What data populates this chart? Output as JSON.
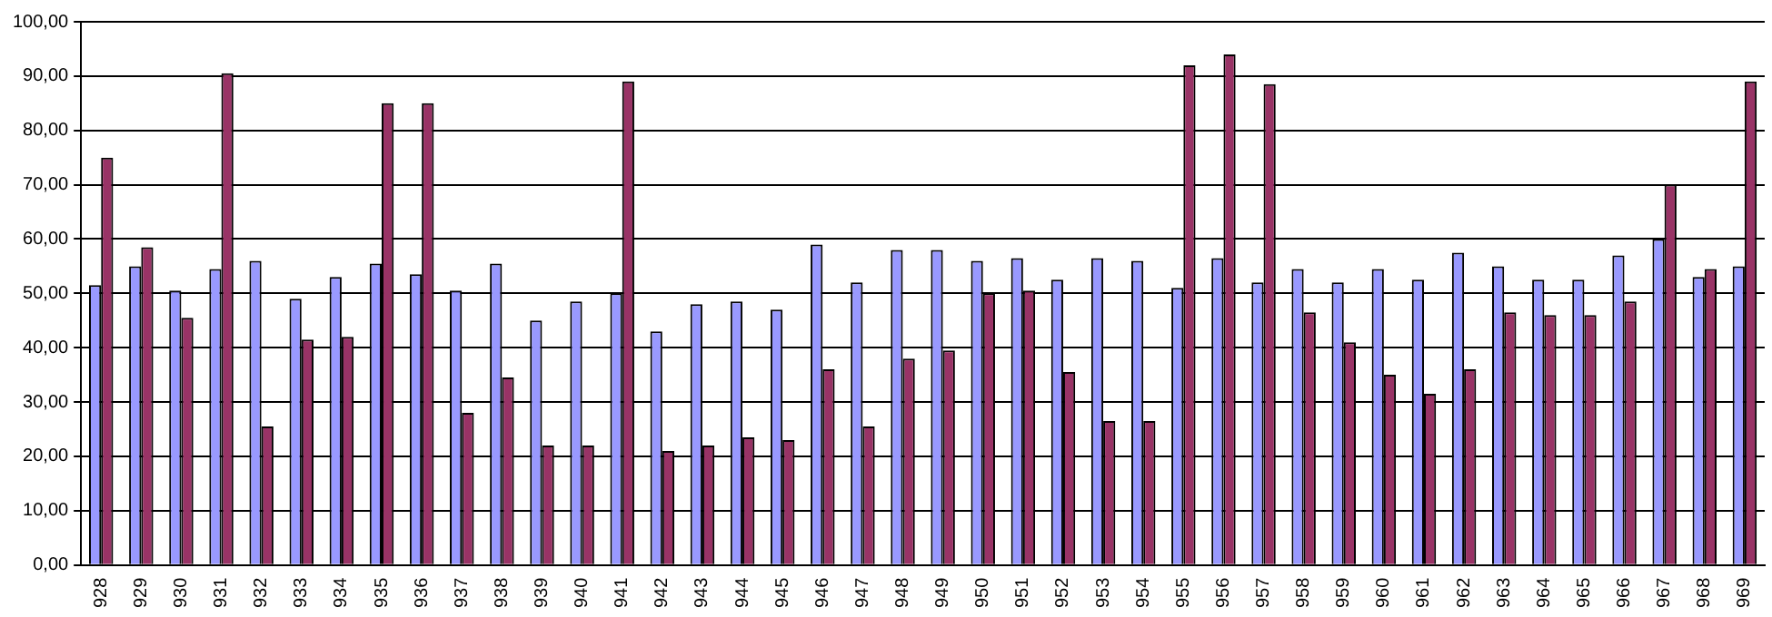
{
  "chart_data": {
    "type": "bar",
    "categories": [
      "928",
      "929",
      "930",
      "931",
      "932",
      "933",
      "934",
      "935",
      "936",
      "937",
      "938",
      "939",
      "940",
      "941",
      "942",
      "943",
      "944",
      "945",
      "946",
      "947",
      "948",
      "949",
      "950",
      "951",
      "952",
      "953",
      "954",
      "955",
      "956",
      "957",
      "958",
      "959",
      "960",
      "961",
      "962",
      "963",
      "964",
      "965",
      "966",
      "967",
      "968",
      "969"
    ],
    "series": [
      {
        "color": "#9999ff",
        "values": [
          51.5,
          55,
          50.5,
          54.5,
          56,
          49,
          53,
          55.5,
          53.5,
          50.5,
          55.5,
          45,
          48.5,
          50,
          43,
          48,
          48.5,
          47,
          59,
          52,
          58,
          58,
          56,
          56.5,
          52.5,
          56.5,
          56,
          51,
          56.5,
          52,
          54.5,
          52,
          54.5,
          52.5,
          57.5,
          55,
          52.5,
          52.5,
          57,
          60,
          53,
          55
        ]
      },
      {
        "color": "#993366",
        "values": [
          75,
          58.5,
          45.5,
          90.5,
          25.5,
          41.5,
          42,
          85,
          85,
          28,
          34.5,
          22,
          22,
          89,
          21,
          22,
          23.5,
          23,
          36,
          25.5,
          38,
          39.5,
          50,
          50.5,
          35.5,
          26.5,
          26.5,
          92,
          94,
          88.5,
          46.5,
          41,
          35,
          31.5,
          36,
          46.5,
          46,
          46,
          48.5,
          70,
          54.5,
          89
        ]
      }
    ],
    "ylim": [
      0,
      100
    ],
    "yticks": [
      {
        "value": 0,
        "label": "0,00"
      },
      {
        "value": 10,
        "label": "10,00"
      },
      {
        "value": 20,
        "label": "20,00"
      },
      {
        "value": 30,
        "label": "30,00"
      },
      {
        "value": 40,
        "label": "40,00"
      },
      {
        "value": 50,
        "label": "50,00"
      },
      {
        "value": 60,
        "label": "60,00"
      },
      {
        "value": 70,
        "label": "70,00"
      },
      {
        "value": 80,
        "label": "80,00"
      },
      {
        "value": 90,
        "label": "90,00"
      },
      {
        "value": 100,
        "label": "100,00"
      }
    ],
    "grid": "y",
    "legend": false
  }
}
